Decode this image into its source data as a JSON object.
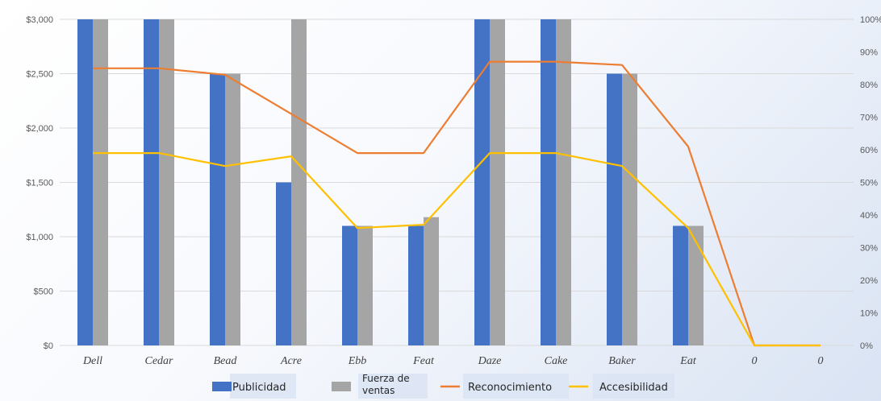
{
  "chart_data": {
    "type": "bar",
    "categories": [
      "Dell",
      "Cedar",
      "Bead",
      "Acre",
      "Ebb",
      "Feat",
      "Daze",
      "Cake",
      "Baker",
      "Eat",
      "0",
      "0"
    ],
    "series": [
      {
        "name": "Publicidad",
        "type": "bar",
        "axis": "left",
        "color": "#4472C4",
        "values": [
          3000,
          3000,
          2500,
          1500,
          1100,
          1100,
          3000,
          3000,
          2500,
          1100,
          0,
          0
        ]
      },
      {
        "name": "Fuerza de ventas",
        "type": "bar",
        "axis": "left",
        "color": "#A5A5A5",
        "values": [
          3000,
          3000,
          2500,
          3000,
          1100,
          1180,
          3000,
          3000,
          2500,
          1100,
          0,
          0
        ]
      },
      {
        "name": "Reconocimiento",
        "type": "line",
        "axis": "right",
        "color": "#ED7D31",
        "values": [
          85,
          85,
          83,
          71,
          59,
          59,
          87,
          87,
          86,
          61,
          0,
          0
        ]
      },
      {
        "name": "Accesibilidad",
        "type": "line",
        "axis": "right",
        "color": "#FFC000",
        "values": [
          59,
          59,
          55,
          58,
          36,
          37,
          59,
          59,
          55,
          36,
          0,
          0
        ]
      }
    ],
    "y_left": {
      "min": 0,
      "max": 3000,
      "step": 500,
      "tick_labels": [
        "$0",
        "$500",
        "$1,000",
        "$1,500",
        "$2,000",
        "$2,500",
        "$3,000"
      ]
    },
    "y_right": {
      "min": 0,
      "max": 100,
      "step": 10,
      "tick_labels": [
        "0%",
        "10%",
        "20%",
        "30%",
        "40%",
        "50%",
        "60%",
        "70%",
        "80%",
        "90%",
        "100%"
      ]
    },
    "legend": {
      "position": "bottom",
      "items": [
        {
          "label": "Publicidad",
          "marker": "box",
          "color": "#4472C4"
        },
        {
          "label_lines": [
            "Fuerza de",
            "ventas"
          ],
          "marker": "box",
          "color": "#A5A5A5"
        },
        {
          "label": "Reconocimiento",
          "marker": "line",
          "color": "#ED7D31"
        },
        {
          "label": "Accesibilidad",
          "marker": "line",
          "color": "#FFC000"
        }
      ]
    },
    "grid": true,
    "title": "",
    "xlabel": "",
    "ylabel": ""
  }
}
